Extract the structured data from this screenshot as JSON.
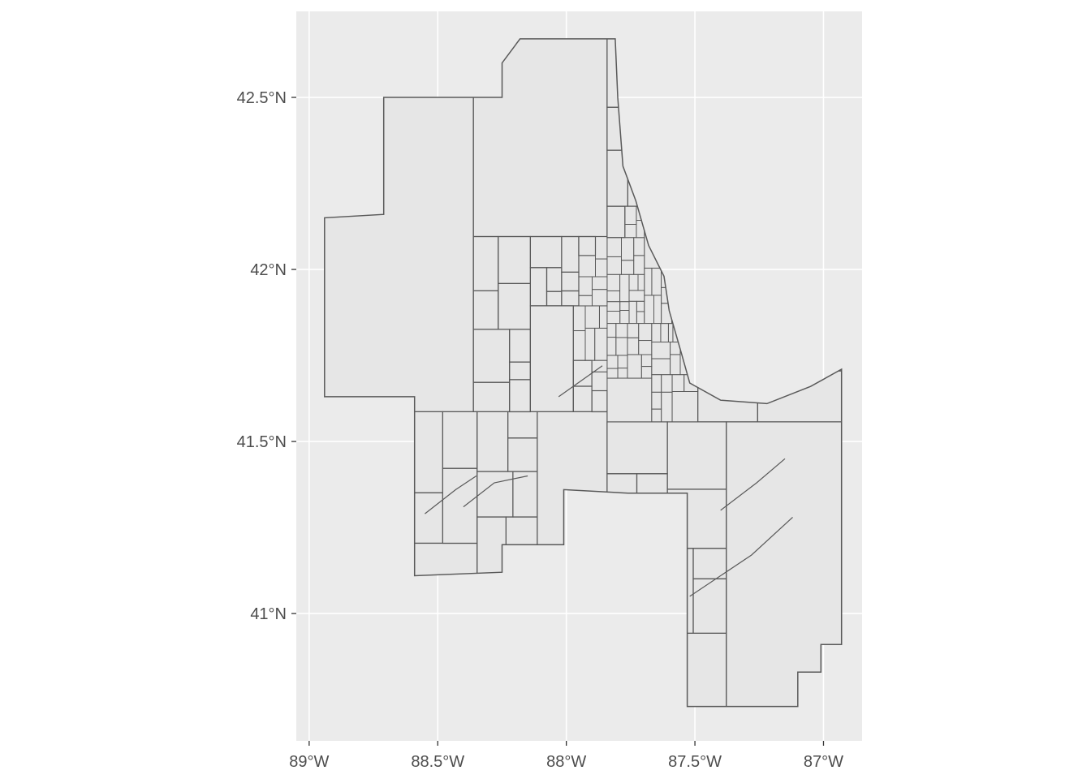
{
  "chart_data": {
    "type": "map",
    "title": "",
    "xlabel": "",
    "ylabel": "",
    "grid": true,
    "legend": "none",
    "xlim": [
      -89.05,
      -86.85
    ],
    "ylim": [
      40.63,
      42.75
    ],
    "x_ticks": [
      {
        "value": -89.0,
        "label": "89°W"
      },
      {
        "value": -88.5,
        "label": "88.5°W"
      },
      {
        "value": -88.0,
        "label": "88°W"
      },
      {
        "value": -87.5,
        "label": "87.5°W"
      },
      {
        "value": -87.0,
        "label": "87°W"
      }
    ],
    "y_ticks": [
      {
        "value": 41.0,
        "label": "41°N"
      },
      {
        "value": 41.5,
        "label": "41.5°N"
      },
      {
        "value": 42.0,
        "label": "42°N"
      },
      {
        "value": 42.5,
        "label": "42.5°N"
      }
    ],
    "region_outline": [
      [
        -88.71,
        42.5
      ],
      [
        -88.25,
        42.5
      ],
      [
        -88.25,
        42.6
      ],
      [
        -88.18,
        42.67
      ],
      [
        -87.81,
        42.67
      ],
      [
        -87.8,
        42.5
      ],
      [
        -87.78,
        42.3
      ],
      [
        -87.73,
        42.2
      ],
      [
        -87.68,
        42.07
      ],
      [
        -87.62,
        41.98
      ],
      [
        -87.6,
        41.88
      ],
      [
        -87.55,
        41.75
      ],
      [
        -87.52,
        41.67
      ],
      [
        -87.4,
        41.62
      ],
      [
        -87.22,
        41.61
      ],
      [
        -87.05,
        41.66
      ],
      [
        -86.93,
        41.71
      ],
      [
        -86.93,
        40.91
      ],
      [
        -87.01,
        40.91
      ],
      [
        -87.01,
        40.83
      ],
      [
        -87.1,
        40.83
      ],
      [
        -87.1,
        40.73
      ],
      [
        -87.53,
        40.73
      ],
      [
        -87.53,
        41.35
      ],
      [
        -87.76,
        41.35
      ],
      [
        -88.01,
        41.36
      ],
      [
        -88.01,
        41.2
      ],
      [
        -88.25,
        41.2
      ],
      [
        -88.25,
        41.12
      ],
      [
        -88.59,
        41.11
      ],
      [
        -88.59,
        41.63
      ],
      [
        -88.94,
        41.63
      ],
      [
        -88.94,
        42.15
      ],
      [
        -88.71,
        42.16
      ]
    ],
    "boundary_color": "#595959",
    "fill_color": "#e6e6e6",
    "panel_color": "#ebebeb",
    "grid_color": "#ffffff"
  }
}
